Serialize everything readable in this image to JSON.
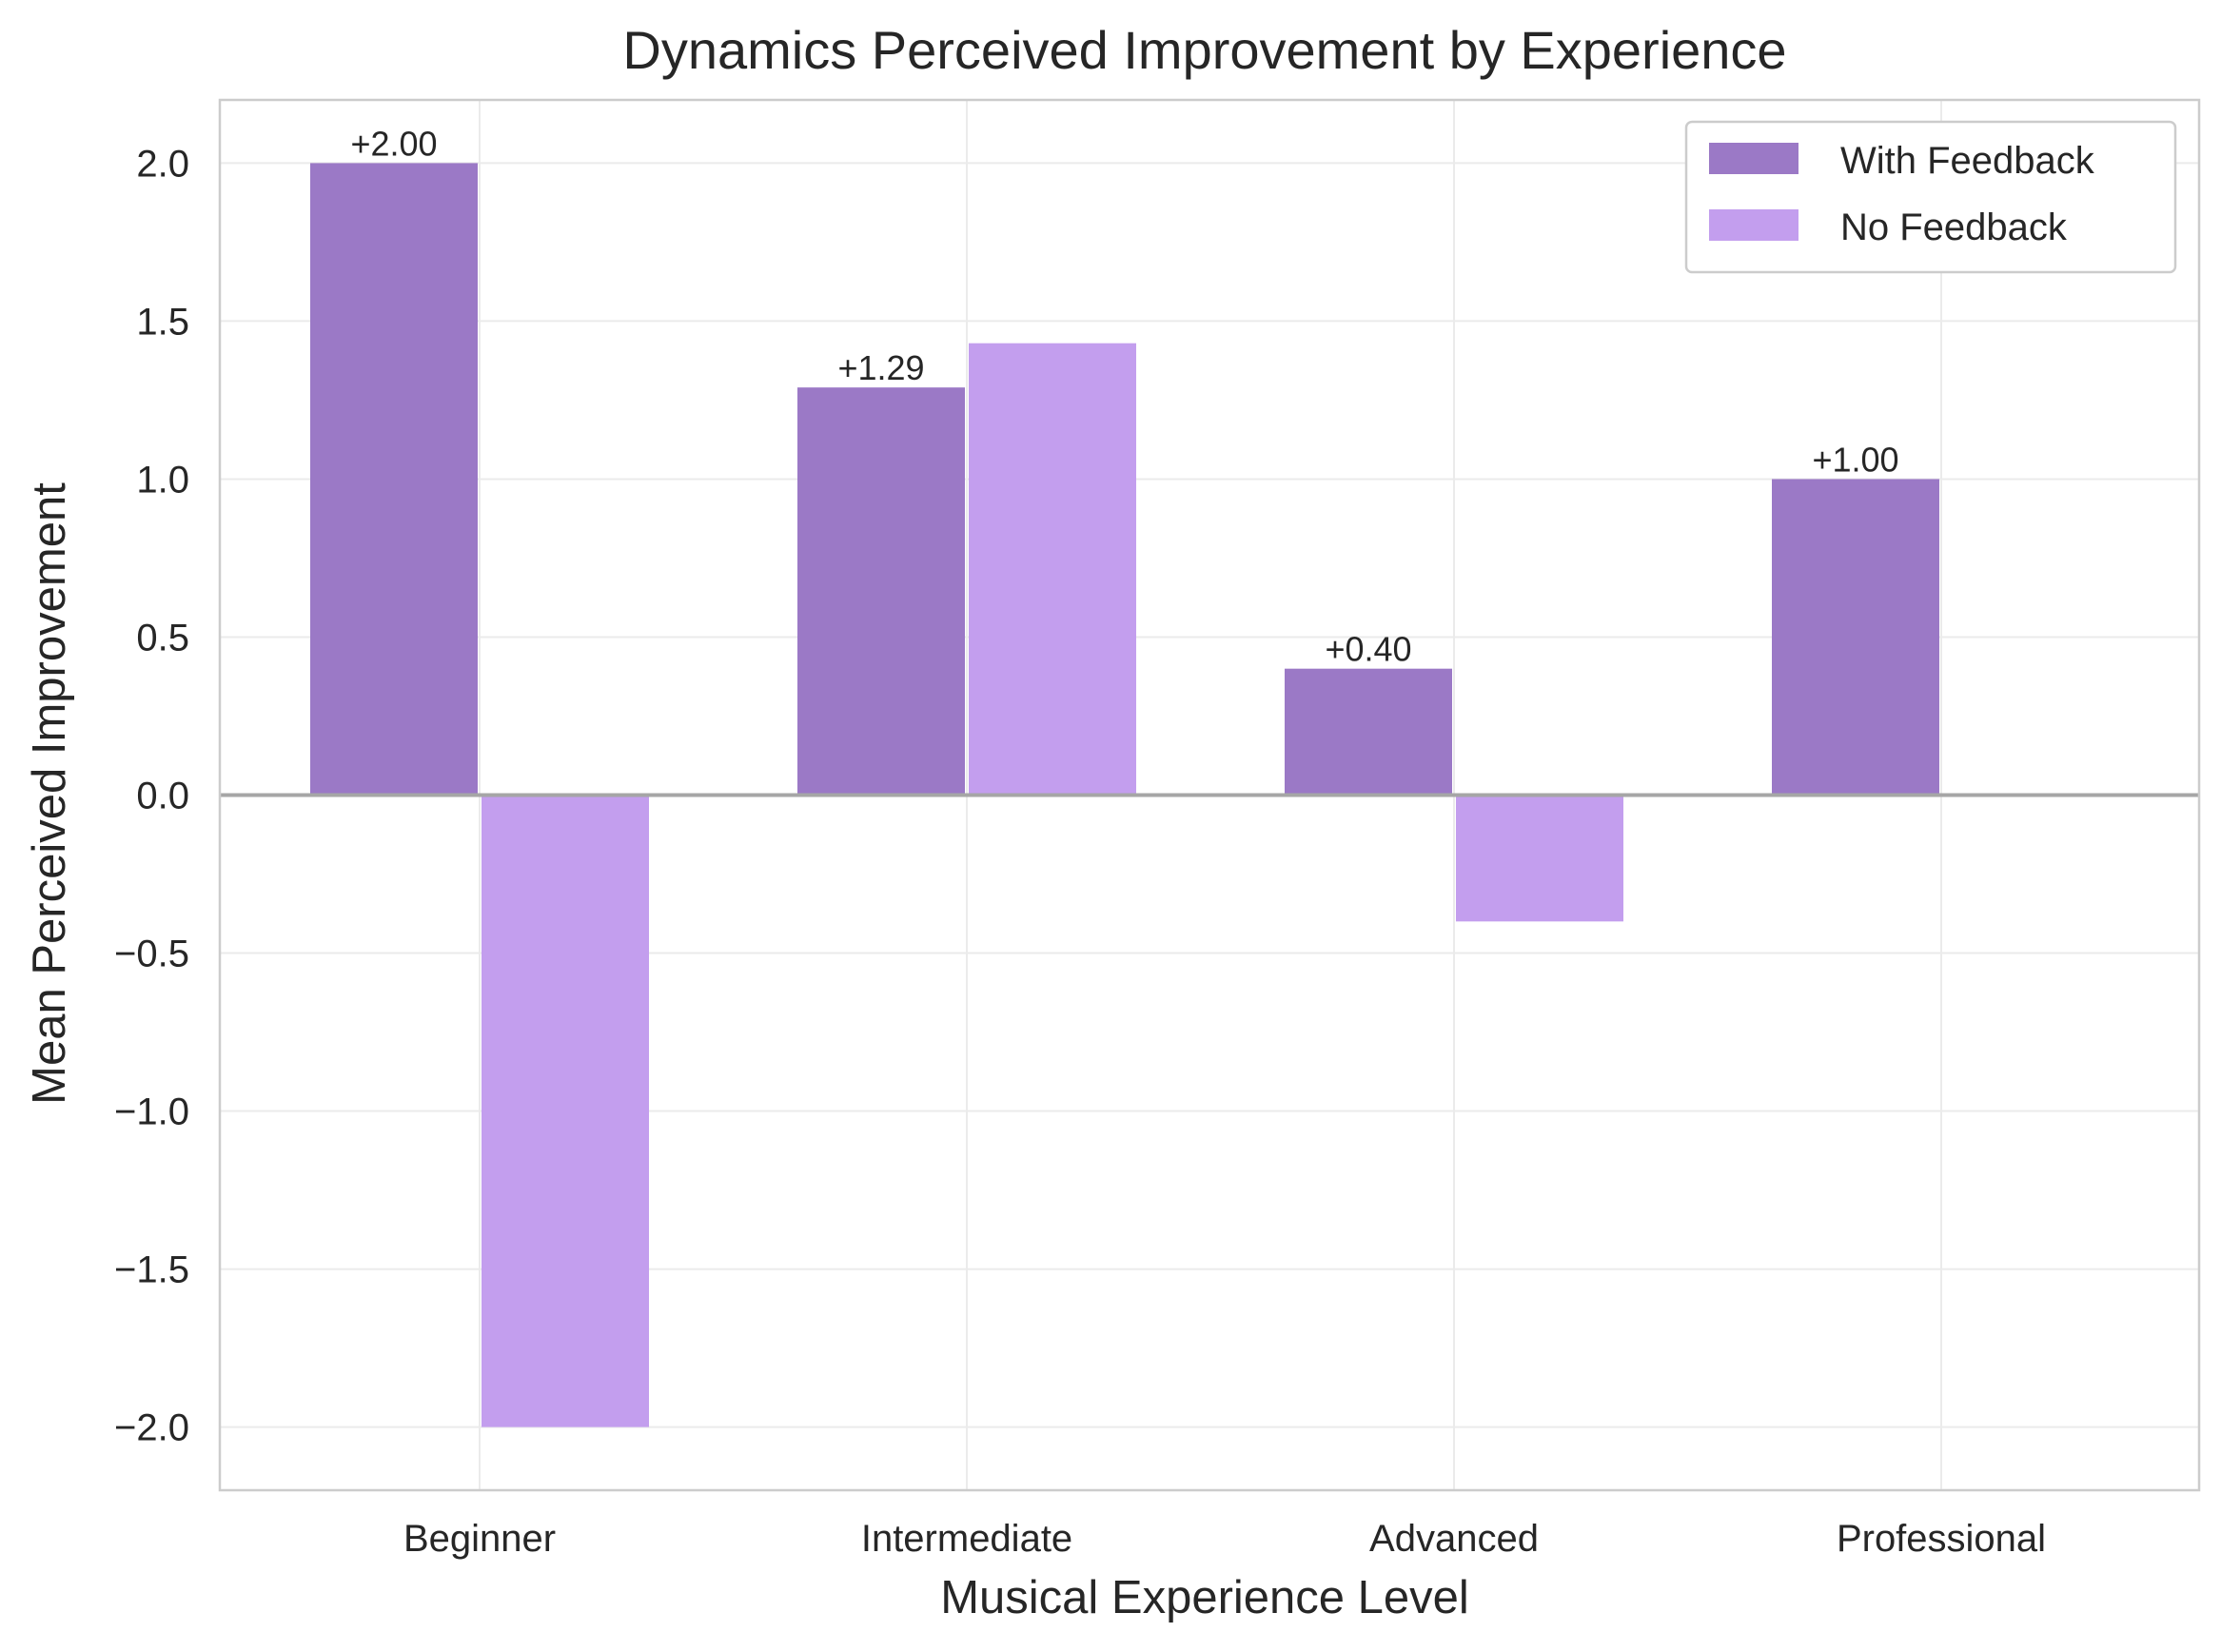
{
  "chart_data": {
    "type": "bar",
    "title": "Dynamics Perceived Improvement by Experience",
    "xlabel": "Musical Experience Level",
    "ylabel": "Mean Perceived Improvement",
    "categories": [
      "Beginner",
      "Intermediate",
      "Advanced",
      "Professional"
    ],
    "series": [
      {
        "name": "With Feedback",
        "values": [
          2.0,
          1.29,
          0.4,
          1.0
        ],
        "color": "#9b79c6",
        "labels": [
          "+2.00",
          "+1.29",
          "+0.40",
          "+1.00"
        ]
      },
      {
        "name": "No Feedback",
        "values": [
          -2.0,
          1.43,
          -0.4,
          0
        ],
        "color": "#c39eee",
        "labels": [
          "",
          "",
          "",
          ""
        ]
      }
    ],
    "ylim": [
      -2.2,
      2.2
    ],
    "yticks": [
      2.0,
      1.5,
      1.0,
      0.5,
      0.0,
      -0.5,
      -1.0,
      -1.5,
      -2.0
    ],
    "ytick_labels": [
      "2.0",
      "1.5",
      "1.0",
      "0.5",
      "0.0",
      "−0.5",
      "−1.0",
      "−1.5",
      "−2.0"
    ],
    "grid": true,
    "legend_position": "top-right",
    "zero_line_color": "#a6a6a6"
  }
}
